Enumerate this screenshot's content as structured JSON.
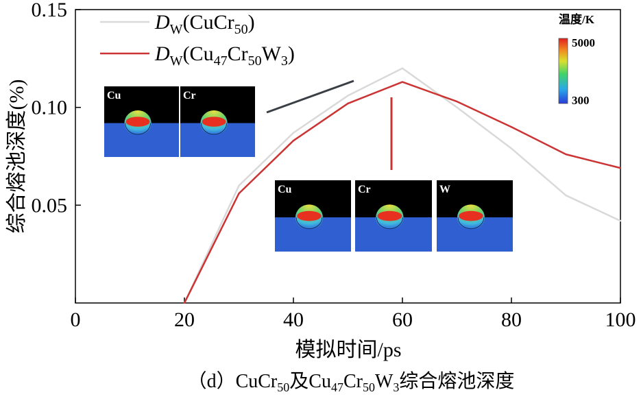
{
  "chart_data": {
    "type": "line",
    "xlabel": "模拟时间/ps",
    "ylabel": "综合熔池深度(%)",
    "xlim": [
      0,
      100
    ],
    "ylim": [
      0,
      0.15
    ],
    "xticks": [
      "0",
      "20",
      "40",
      "60",
      "80",
      "100"
    ],
    "yticks": [
      "0.05",
      "0.10",
      "0.15"
    ],
    "series": [
      {
        "name": "D_W(CuCr50)",
        "legend_main": "D",
        "legend_sub": "W",
        "legend_rest": [
          [
            "(CuCr",
            ""
          ],
          [
            "50",
            "sub"
          ],
          [
            ")",
            ""
          ]
        ],
        "color": "#d9d9d9",
        "x": [
          20,
          30,
          40,
          50,
          60,
          70,
          80,
          90,
          100
        ],
        "y": [
          0.0,
          0.06,
          0.087,
          0.106,
          0.12,
          0.1,
          0.079,
          0.055,
          0.042
        ]
      },
      {
        "name": "D_W(Cu47Cr50W3)",
        "legend_main": "D",
        "legend_sub": "W",
        "legend_rest": [
          [
            "(Cu",
            ""
          ],
          [
            "47",
            "sub"
          ],
          [
            "Cr",
            ""
          ],
          [
            "50",
            "sub"
          ],
          [
            "W",
            ""
          ],
          [
            "3",
            "sub"
          ],
          [
            ")",
            ""
          ]
        ],
        "color": "#cc3333",
        "x": [
          20,
          30,
          40,
          50,
          60,
          70,
          80,
          90,
          100
        ],
        "y": [
          0.0,
          0.056,
          0.083,
          0.102,
          0.113,
          0.103,
          0.09,
          0.076,
          0.069
        ]
      }
    ],
    "caption": "（d）CuCr50及Cu47Cr50W3综合熔池深度",
    "colorbar": {
      "title": "温度/K",
      "max": "5000",
      "min": "300"
    },
    "inset_top_labels": [
      "Cu",
      "Cr"
    ],
    "inset_bottom_labels": [
      "Cu",
      "Cr",
      "W"
    ]
  }
}
